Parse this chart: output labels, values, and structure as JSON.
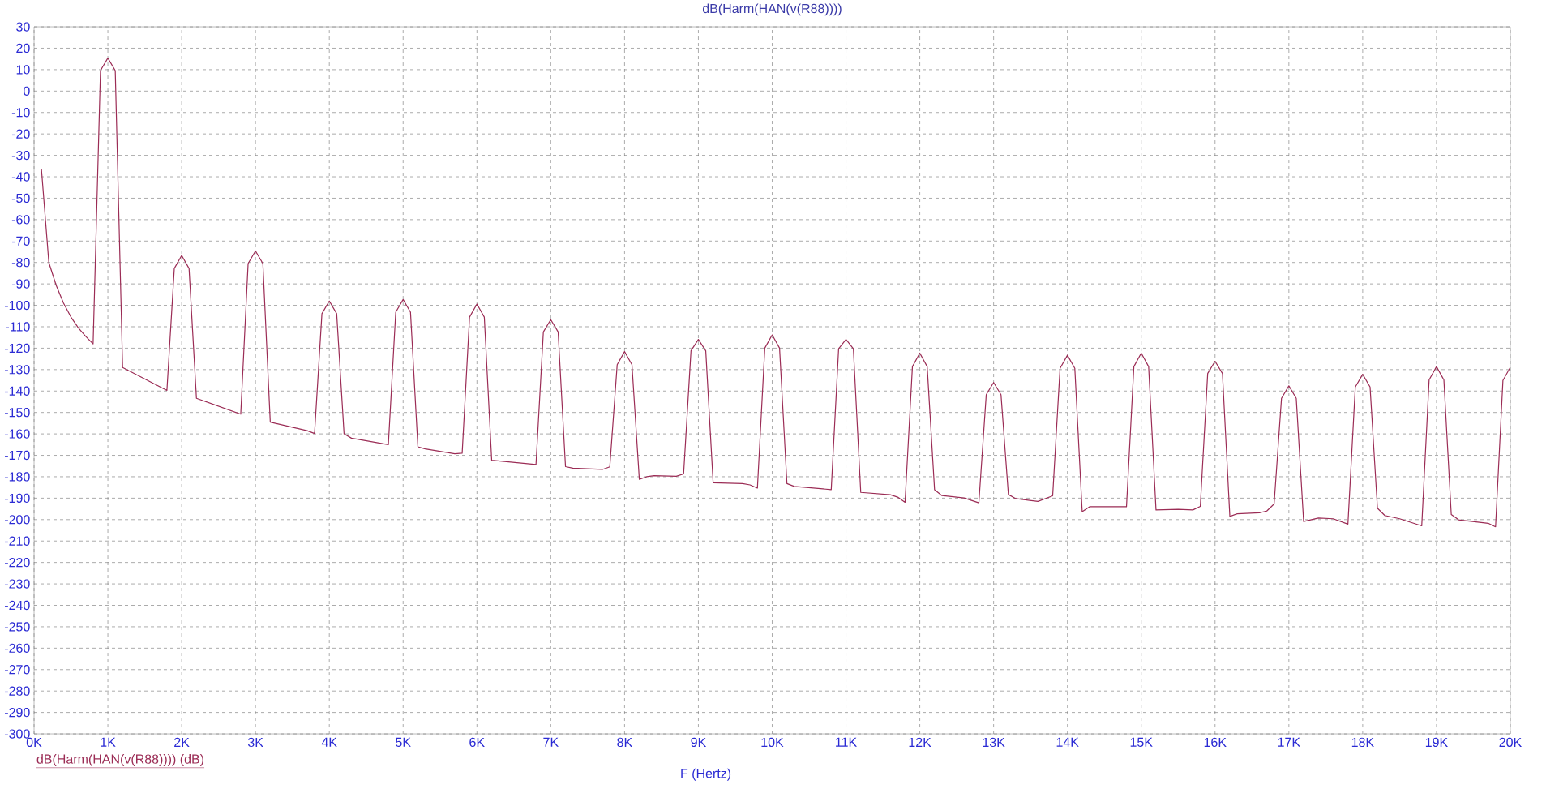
{
  "chart_data": {
    "type": "line",
    "title": "dB(Harm(HAN(v(R88))))",
    "xlabel": "F (Hertz)",
    "xlim": [
      0,
      20
    ],
    "ylim": [
      -300,
      30
    ],
    "xticks": [
      {
        "value": 0,
        "label": "0K"
      },
      {
        "value": 1,
        "label": "1K"
      },
      {
        "value": 2,
        "label": "2K"
      },
      {
        "value": 3,
        "label": "3K"
      },
      {
        "value": 4,
        "label": "4K"
      },
      {
        "value": 5,
        "label": "5K"
      },
      {
        "value": 6,
        "label": "6K"
      },
      {
        "value": 7,
        "label": "7K"
      },
      {
        "value": 8,
        "label": "8K"
      },
      {
        "value": 9,
        "label": "9K"
      },
      {
        "value": 10,
        "label": "10K"
      },
      {
        "value": 11,
        "label": "11K"
      },
      {
        "value": 12,
        "label": "12K"
      },
      {
        "value": 13,
        "label": "13K"
      },
      {
        "value": 14,
        "label": "14K"
      },
      {
        "value": 15,
        "label": "15K"
      },
      {
        "value": 16,
        "label": "16K"
      },
      {
        "value": 17,
        "label": "17K"
      },
      {
        "value": 18,
        "label": "18K"
      },
      {
        "value": 19,
        "label": "19K"
      },
      {
        "value": 20,
        "label": "20K"
      }
    ],
    "yticks": [
      30,
      20,
      10,
      0,
      -10,
      -20,
      -30,
      -40,
      -50,
      -60,
      -70,
      -80,
      -90,
      -100,
      -110,
      -120,
      -130,
      -140,
      -150,
      -160,
      -170,
      -180,
      -190,
      -200,
      -210,
      -220,
      -230,
      -240,
      -250,
      -260,
      -270,
      -280,
      -290,
      -300
    ],
    "grid": true,
    "legend": "bottom left",
    "marker": "none",
    "line_style": "solid",
    "series": [
      {
        "name": "dB(Harm(HAN(v(R88)))) (dB)",
        "color": "#9b2c55",
        "x": [
          0.1,
          0.2,
          0.3,
          0.4,
          0.5,
          0.6,
          0.7,
          0.8,
          0.9,
          1.0,
          1.1,
          1.2,
          1.8,
          1.9,
          2.0,
          2.1,
          2.2,
          2.8,
          2.9,
          3.0,
          3.1,
          3.2,
          3.7,
          3.8,
          3.9,
          4.0,
          4.1,
          4.2,
          4.3,
          4.8,
          4.9,
          5.0,
          5.1,
          5.2,
          5.3,
          5.7,
          5.8,
          5.9,
          6.0,
          6.1,
          6.2,
          6.8,
          6.9,
          7.0,
          7.1,
          7.2,
          7.3,
          7.7,
          7.8,
          7.9,
          8.0,
          8.1,
          8.2,
          8.3,
          8.4,
          8.7,
          8.8,
          8.9,
          9.0,
          9.1,
          9.2,
          9.6,
          9.7,
          9.8,
          9.9,
          10.0,
          10.1,
          10.2,
          10.3,
          10.8,
          10.9,
          11.0,
          11.1,
          11.2,
          11.6,
          11.7,
          11.8,
          11.9,
          12.0,
          12.1,
          12.2,
          12.3,
          12.6,
          12.8,
          12.9,
          13.0,
          13.1,
          13.2,
          13.3,
          13.6,
          13.8,
          13.9,
          14.0,
          14.1,
          14.2,
          14.3,
          14.8,
          14.9,
          15.0,
          15.1,
          15.2,
          15.5,
          15.7,
          15.8,
          15.9,
          16.0,
          16.1,
          16.2,
          16.3,
          16.6,
          16.7,
          16.8,
          16.9,
          17.0,
          17.1,
          17.2,
          17.4,
          17.6,
          17.8,
          17.9,
          18.0,
          18.1,
          18.2,
          18.3,
          18.5,
          18.8,
          18.9,
          19.0,
          19.1,
          19.2,
          19.3,
          19.7,
          19.8,
          19.9,
          20.0
        ],
        "values": [
          -36.4,
          -80,
          -90.7,
          -99,
          -105.5,
          -110.5,
          -114.5,
          -118,
          9.6,
          15.4,
          9.6,
          -129,
          -139.7,
          -82.8,
          -76.7,
          -82.8,
          -143.4,
          -150.8,
          -80.5,
          -74.6,
          -80.5,
          -154.5,
          -158.5,
          -159.8,
          -103.9,
          -98,
          -103.9,
          -160,
          -162,
          -165,
          -103.2,
          -97.3,
          -103.2,
          -166,
          -167,
          -169.3,
          -169,
          -105.5,
          -99.4,
          -105.5,
          -172.3,
          -174.3,
          -112.4,
          -106.7,
          -112.4,
          -175.3,
          -176,
          -176.6,
          -175.4,
          -127.7,
          -121.6,
          -127.7,
          -181.2,
          -180,
          -179.5,
          -179.8,
          -178.7,
          -121.2,
          -115.9,
          -121.2,
          -182.8,
          -183.2,
          -183.8,
          -185.3,
          -120,
          -113.8,
          -120,
          -183.2,
          -184.5,
          -186,
          -120.3,
          -115.9,
          -120.3,
          -187.3,
          -188.4,
          -189.5,
          -191.9,
          -128.6,
          -122.3,
          -128.6,
          -186.1,
          -188.8,
          -189.9,
          -192.2,
          -141.7,
          -136,
          -141.7,
          -188.3,
          -190.2,
          -191.5,
          -188.9,
          -129.4,
          -123.3,
          -129.4,
          -196.3,
          -194,
          -194,
          -128.6,
          -122.3,
          -128.6,
          -195.5,
          -195.2,
          -195.5,
          -193.8,
          -131.8,
          -126.1,
          -131.8,
          -198.5,
          -197.3,
          -196.8,
          -196,
          -192.7,
          -143.4,
          -137.6,
          -143.4,
          -200.9,
          -199.3,
          -199.6,
          -202.1,
          -138.1,
          -132.2,
          -138.1,
          -194.7,
          -198.1,
          -199.6,
          -202.9,
          -134.8,
          -128.6,
          -134.8,
          -197.6,
          -200.1,
          -201.7,
          -203.4,
          -135.1,
          -128.9
        ]
      }
    ]
  }
}
